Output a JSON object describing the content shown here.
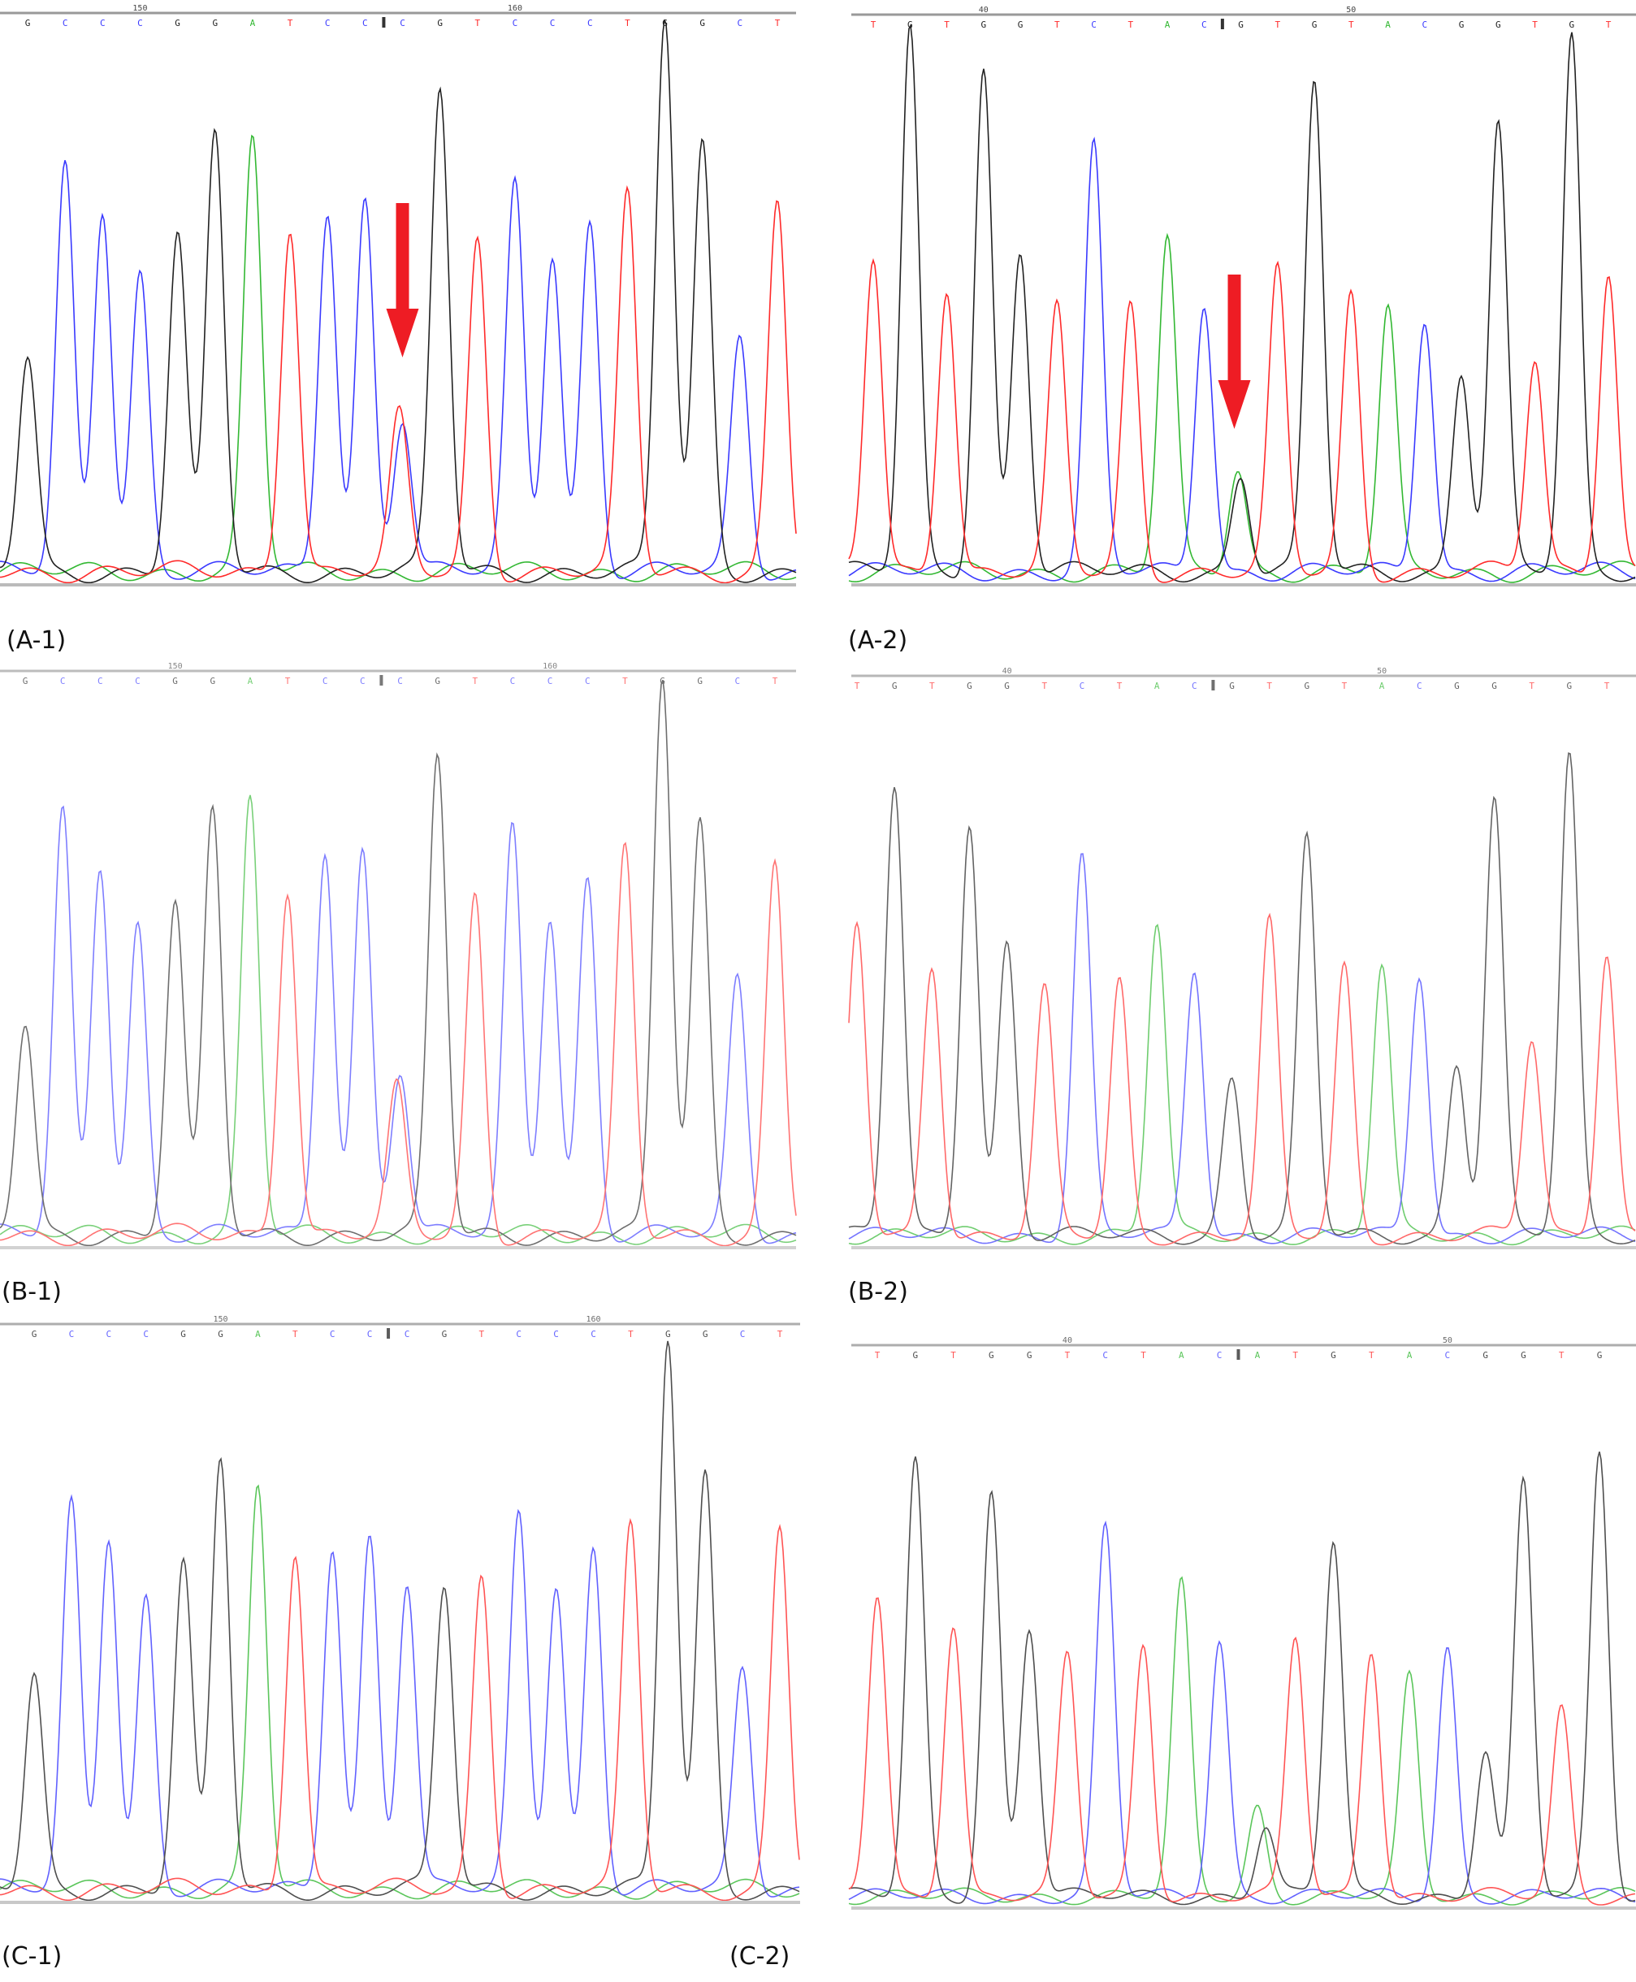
{
  "colors": {
    "A": "#33b833",
    "C": "#3a3aff",
    "G": "#222222",
    "T": "#ff2a2a",
    "arrow": "#ee1c24"
  },
  "panel_labels": [
    "(A-1)",
    "(A-2)",
    "(B-1)",
    "(B-2)",
    "(C-1)",
    "(C-2)"
  ],
  "chart_data": [
    {
      "type": "line",
      "id": "A-1",
      "label": "(A-1)",
      "bases": [
        "G",
        "C",
        "C",
        "C",
        "G",
        "G",
        "A",
        "T",
        "C",
        "C",
        "C",
        "G",
        "T",
        "C",
        "C",
        "C",
        "T",
        "G",
        "G",
        "C",
        "T"
      ],
      "peak_heights": [
        0.39,
        0.73,
        0.66,
        0.54,
        0.61,
        0.79,
        0.78,
        0.63,
        0.66,
        0.67,
        0.28,
        0.87,
        0.6,
        0.7,
        0.58,
        0.63,
        0.68,
        1.0,
        0.77,
        0.42,
        0.67
      ],
      "secondary_peaks": [
        {
          "base_index": 10,
          "base": "T",
          "height": 0.28
        }
      ],
      "ruler": [
        {
          "label": "150",
          "base_index": 3
        },
        {
          "label": "160",
          "base_index": 13
        }
      ],
      "cursor_base_index": 10,
      "arrow_base_index": 10
    },
    {
      "type": "line",
      "id": "A-2",
      "label": "(A-2)",
      "bases": [
        "T",
        "G",
        "T",
        "G",
        "G",
        "T",
        "C",
        "T",
        "A",
        "C",
        "G",
        "T",
        "G",
        "T",
        "A",
        "C",
        "G",
        "G",
        "T",
        "G",
        "T"
      ],
      "peak_heights": [
        0.58,
        1.0,
        0.53,
        0.93,
        0.59,
        0.48,
        0.78,
        0.49,
        0.61,
        0.5,
        0.18,
        0.55,
        0.9,
        0.51,
        0.48,
        0.47,
        0.37,
        0.82,
        0.39,
        0.98,
        0.56
      ],
      "secondary_peaks": [
        {
          "base_index": 10,
          "base": "A",
          "height": 0.19
        }
      ],
      "ruler": [
        {
          "label": "40",
          "base_index": 3
        },
        {
          "label": "50",
          "base_index": 13
        }
      ],
      "cursor_base_index": 10,
      "arrow_base_index": 10
    },
    {
      "type": "line",
      "id": "B-1",
      "label": "(B-1)",
      "bases": [
        "G",
        "C",
        "C",
        "C",
        "G",
        "G",
        "A",
        "T",
        "C",
        "C",
        "C",
        "G",
        "T",
        "C",
        "C",
        "C",
        "T",
        "G",
        "G",
        "C",
        "T"
      ],
      "peak_heights": [
        0.38,
        0.76,
        0.67,
        0.56,
        0.6,
        0.76,
        0.78,
        0.63,
        0.7,
        0.69,
        0.3,
        0.86,
        0.61,
        0.73,
        0.58,
        0.64,
        0.69,
        1.0,
        0.74,
        0.46,
        0.67
      ],
      "secondary_peaks": [
        {
          "base_index": 10,
          "base": "T",
          "height": 0.26
        }
      ],
      "ruler": [
        {
          "label": "150",
          "base_index": 4
        },
        {
          "label": "160",
          "base_index": 14
        }
      ],
      "cursor_base_index": 10
    },
    {
      "type": "line",
      "id": "B-2",
      "label": "(B-2)",
      "bases": [
        "T",
        "G",
        "T",
        "G",
        "G",
        "T",
        "C",
        "T",
        "A",
        "C",
        "G",
        "T",
        "G",
        "T",
        "A",
        "C",
        "G",
        "G",
        "T",
        "G",
        "T"
      ],
      "peak_heights": [
        0.65,
        0.94,
        0.57,
        0.87,
        0.61,
        0.51,
        0.79,
        0.53,
        0.65,
        0.56,
        0.33,
        0.65,
        0.83,
        0.56,
        0.56,
        0.55,
        0.36,
        0.91,
        0.41,
        1.0,
        0.6
      ],
      "secondary_peaks": [],
      "ruler": [
        {
          "label": "40",
          "base_index": 4
        },
        {
          "label": "50",
          "base_index": 14
        }
      ],
      "cursor_base_index": 10
    },
    {
      "type": "line",
      "id": "C-1",
      "label": "(C-1)",
      "bases": [
        "G",
        "C",
        "C",
        "C",
        "G",
        "G",
        "A",
        "T",
        "C",
        "C",
        "C",
        "G",
        "T",
        "C",
        "C",
        "C",
        "T",
        "G",
        "G",
        "C",
        "T"
      ],
      "peak_heights": [
        0.39,
        0.7,
        0.65,
        0.53,
        0.59,
        0.78,
        0.73,
        0.62,
        0.63,
        0.64,
        0.56,
        0.55,
        0.57,
        0.68,
        0.56,
        0.62,
        0.66,
        1.0,
        0.75,
        0.4,
        0.66
      ],
      "secondary_peaks": [],
      "ruler": [
        {
          "label": "150",
          "base_index": 5
        },
        {
          "label": "160",
          "base_index": 15
        }
      ],
      "cursor_base_index": 10
    },
    {
      "type": "line",
      "id": "C-2",
      "label": "(C-2)",
      "bases": [
        "T",
        "G",
        "T",
        "G",
        "G",
        "T",
        "C",
        "T",
        "A",
        "C",
        "A",
        "T",
        "G",
        "T",
        "A",
        "C",
        "G",
        "G",
        "T",
        "G"
      ],
      "peak_heights": [
        0.68,
        0.98,
        0.62,
        0.91,
        0.61,
        0.54,
        0.83,
        0.57,
        0.7,
        0.58,
        0.2,
        0.58,
        0.8,
        0.56,
        0.49,
        0.56,
        0.33,
        0.93,
        0.42,
        1.0
      ],
      "secondary_peaks": [
        {
          "base_index": 10,
          "base": "G",
          "height": 0.16
        }
      ],
      "ruler": [
        {
          "label": "40",
          "base_index": 5
        },
        {
          "label": "50",
          "base_index": 15
        }
      ],
      "cursor_base_index": 10
    }
  ]
}
